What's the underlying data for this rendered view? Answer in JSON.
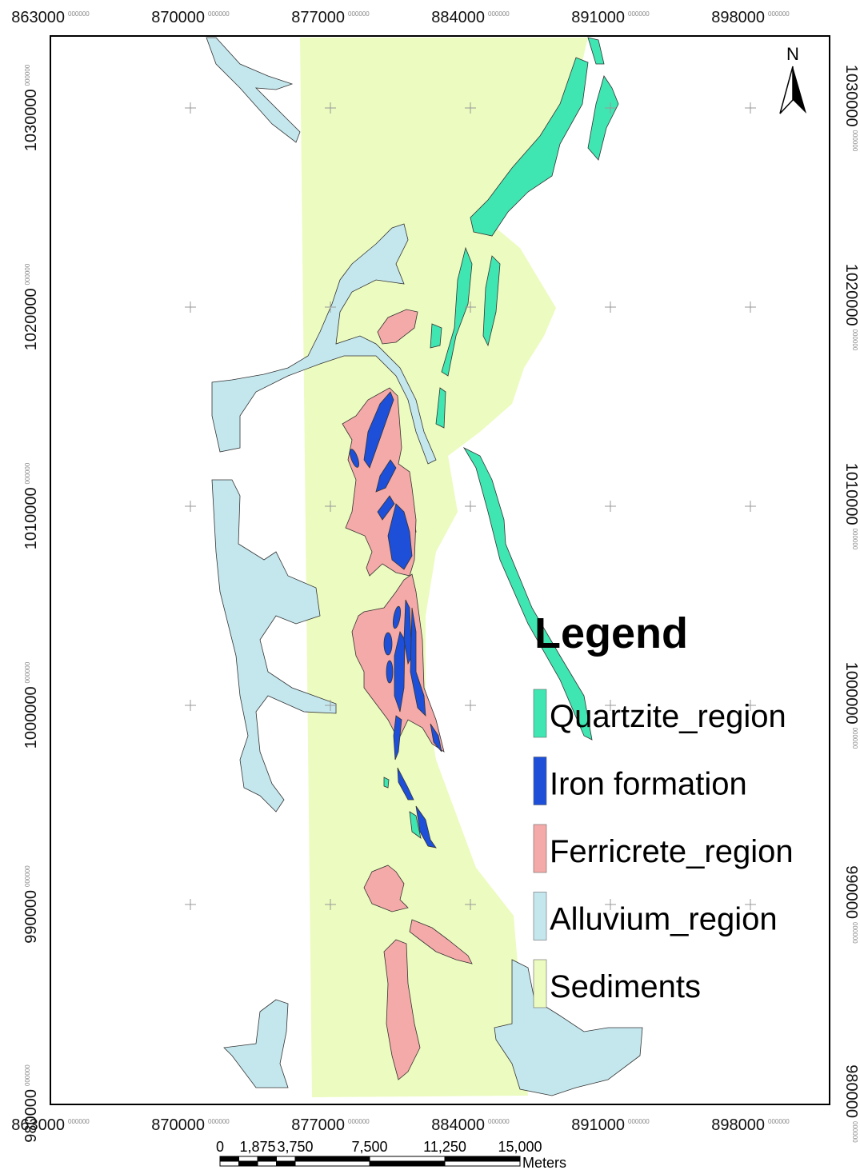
{
  "map": {
    "x_labels": [
      {
        "text": "863000",
        "suffix": "000000"
      },
      {
        "text": "870000",
        "suffix": "000000"
      },
      {
        "text": "877000",
        "suffix": "000000"
      },
      {
        "text": "884000",
        "suffix": "000000"
      },
      {
        "text": "891000",
        "suffix": "000000"
      },
      {
        "text": "898000",
        "suffix": "000000"
      }
    ],
    "y_labels": [
      {
        "text": "1030000",
        "suffix": "000000"
      },
      {
        "text": "1020000",
        "suffix": "000000"
      },
      {
        "text": "1010000",
        "suffix": "000000"
      },
      {
        "text": "1000000",
        "suffix": "000000"
      },
      {
        "text": "990000",
        "suffix": "000000"
      },
      {
        "text": "980000",
        "suffix": "000000"
      }
    ],
    "north": "N",
    "legend": {
      "title": "Legend",
      "items": [
        {
          "label": "Quartzite_region",
          "color": "#3fe6b2"
        },
        {
          "label": "Iron formation",
          "color": "#1d4fd9"
        },
        {
          "label": "Ferricrete_region",
          "color": "#f4aaa8"
        },
        {
          "label": "Alluvium_region",
          "color": "#c4e7ee"
        },
        {
          "label": "Sediments",
          "color": "#ecfbbf"
        }
      ]
    },
    "scale_bar": {
      "labels": [
        "0",
        "1,875",
        "3,750",
        "7,500",
        "11,250",
        "15,000"
      ],
      "unit": "Meters"
    }
  }
}
